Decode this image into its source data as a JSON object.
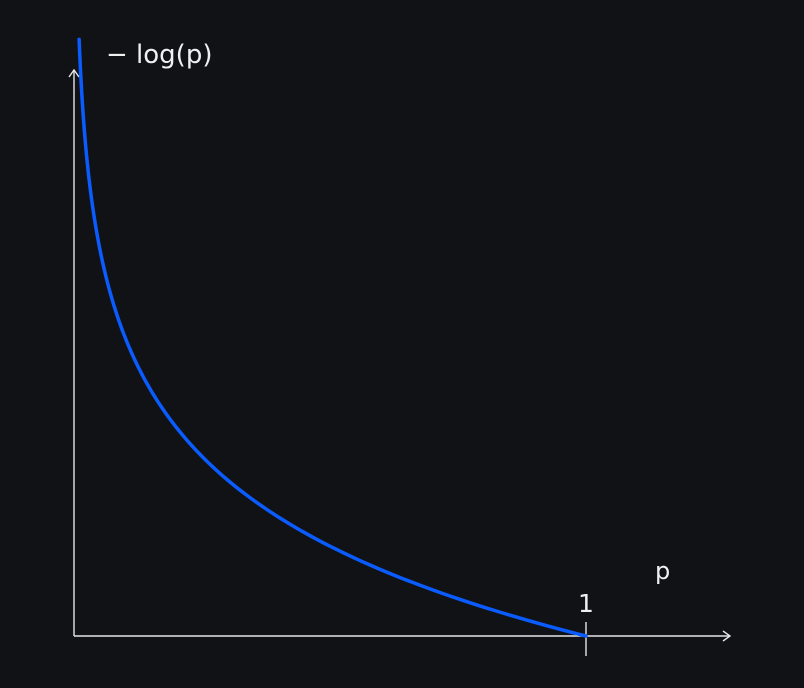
{
  "chart_data": {
    "type": "line",
    "title": "",
    "xlabel": "p",
    "ylabel": "− log(p)",
    "grid": false,
    "legend": "none",
    "xlim": [
      0,
      1.27
    ],
    "ylim": [
      0,
      4.6
    ],
    "x_ticks": [
      1
    ],
    "x_tick_labels": [
      "1"
    ],
    "y_ticks": [],
    "series": [
      {
        "color": "#0a5cff",
        "function": "-log(p)",
        "x": [
          0.01,
          0.015,
          0.02,
          0.03,
          0.04,
          0.05,
          0.07,
          0.1,
          0.13,
          0.16,
          0.2,
          0.25,
          0.3,
          0.35,
          0.4,
          0.45,
          0.5,
          0.55,
          0.6,
          0.65,
          0.7,
          0.75,
          0.8,
          0.85,
          0.9,
          0.95,
          1.0
        ],
        "y": [
          4.605,
          4.2,
          3.912,
          3.507,
          3.219,
          2.996,
          2.659,
          2.303,
          2.04,
          1.833,
          1.609,
          1.386,
          1.204,
          1.05,
          0.916,
          0.799,
          0.693,
          0.598,
          0.511,
          0.431,
          0.357,
          0.288,
          0.223,
          0.163,
          0.105,
          0.051,
          0.0
        ]
      }
    ]
  }
}
